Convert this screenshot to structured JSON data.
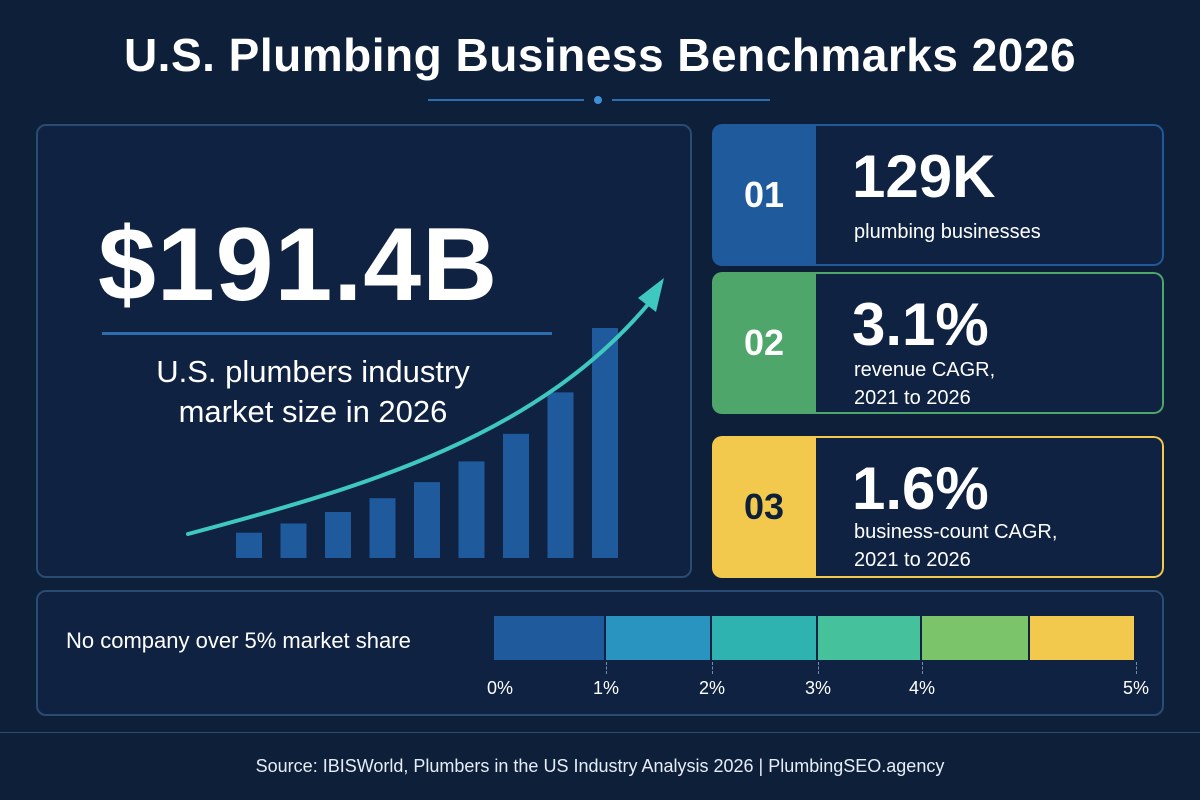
{
  "header": {
    "title": "U.S. Plumbing Business Benchmarks 2026"
  },
  "main_stat": {
    "value": "$191.4B",
    "label_line1": "U.S. plumbers industry",
    "label_line2": "market size in 2026",
    "accent_color": "#3ec8c0",
    "bar_color": "#1f5a9c",
    "bar_relative_heights": [
      0.11,
      0.15,
      0.2,
      0.26,
      0.33,
      0.42,
      0.54,
      0.72,
      1.0
    ]
  },
  "stats": [
    {
      "number": "01",
      "value": "129K",
      "desc_line1": "plumbing businesses",
      "desc_line2": "",
      "color": "#1f5a9c",
      "text_color": "#ffffff"
    },
    {
      "number": "02",
      "value": "3.1%",
      "desc_line1": "revenue CAGR,",
      "desc_line2": "2021 to 2026",
      "color": "#4fa66a",
      "text_color": "#ffffff"
    },
    {
      "number": "03",
      "value": "1.6%",
      "desc_line1": "business-count CAGR,",
      "desc_line2": "2021 to 2026",
      "color": "#f2c94c",
      "text_color": "#0e1f3a"
    }
  ],
  "market_share": {
    "label": "No company over 5% market share",
    "ticks": [
      "0%",
      "1%",
      "2%",
      "3%",
      "4%",
      "5%"
    ],
    "segment_colors": [
      "#1f5a9c",
      "#2a94c0",
      "#2fb3b0",
      "#45c19c",
      "#7cc46a",
      "#f2c94c"
    ]
  },
  "footer": {
    "source": "Source: IBISWorld, Plumbers in the US Industry Analysis 2026  |  PlumbingSEO.agency"
  }
}
